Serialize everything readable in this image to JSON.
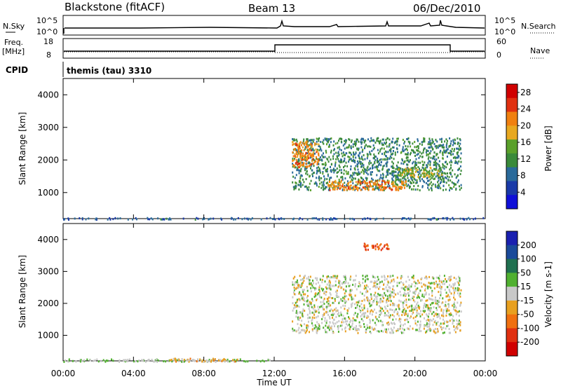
{
  "header": {
    "station": "Blackstone (fitACF)",
    "beam": "Beam 13",
    "date": "06/Dec/2010"
  },
  "mini_panels": {
    "nsky_label": "N.Sky",
    "nsky_ticks": [
      "10^5",
      "10^0"
    ],
    "nsearch_label": "N.Search",
    "nsearch_ticks": [
      "10^5",
      "10^0"
    ],
    "freq_label_1": "Freq.",
    "freq_label_2": "[MHz]",
    "freq_ticks": [
      "18",
      "8"
    ],
    "nave_label": "Nave",
    "nave_ticks": [
      "60",
      "0"
    ],
    "cpid_label": "CPID",
    "cpid_value": "themis (tau) 3310"
  },
  "colors": {
    "power": [
      "#1010d8",
      "#1a3aa8",
      "#2a6a9a",
      "#3a8a3a",
      "#5aa02a",
      "#e8a820",
      "#f08010",
      "#e03010",
      "#d00000"
    ],
    "velocity": [
      "#1a20b0",
      "#1a4a9a",
      "#207050",
      "#50b030",
      "#c8c8c8",
      "#e8a020",
      "#f07010",
      "#e03010",
      "#d00000"
    ]
  },
  "chart_data": [
    {
      "type": "heatmap",
      "name": "power",
      "xlabel": "Time UT",
      "ylabel": "Slant Range [km]",
      "xlim": [
        0,
        24
      ],
      "ylim": [
        200,
        4500
      ],
      "x_ticks": [
        "00:00",
        "04:00",
        "08:00",
        "12:00",
        "16:00",
        "20:00",
        "00:00"
      ],
      "y_ticks": [
        "1000",
        "2000",
        "3000",
        "4000"
      ],
      "colorbar": {
        "label": "Power [dB]",
        "ticks": [
          "4",
          "8",
          "12",
          "16",
          "20",
          "24",
          "28"
        ],
        "range": [
          0,
          30
        ]
      },
      "regions": [
        {
          "t_start": 0,
          "t_end": 24,
          "range_km": [
            200,
            250
          ],
          "value_db": 6
        },
        {
          "t_start": 13.0,
          "t_end": 22.6,
          "range_km": [
            1100,
            2700
          ],
          "value_db": 10
        },
        {
          "t_start": 13.0,
          "t_end": 14.5,
          "range_km": [
            1800,
            2600
          ],
          "value_db": 22
        },
        {
          "t_start": 15.0,
          "t_end": 19.5,
          "range_km": [
            1100,
            1400
          ],
          "value_db": 22
        },
        {
          "t_start": 19.0,
          "t_end": 21.5,
          "range_km": [
            1500,
            1800
          ],
          "value_db": 16
        }
      ]
    },
    {
      "type": "heatmap",
      "name": "velocity",
      "xlabel": "Time UT",
      "ylabel": "Slant Range [km]",
      "xlim": [
        0,
        24
      ],
      "ylim": [
        200,
        4500
      ],
      "x_ticks": [
        "00:00",
        "04:00",
        "08:00",
        "12:00",
        "16:00",
        "20:00",
        "00:00"
      ],
      "y_ticks": [
        "1000",
        "2000",
        "3000",
        "4000"
      ],
      "colorbar": {
        "label": "Velocity [m s-1]",
        "ticks": [
          "200",
          "100",
          "50",
          "15",
          "-15",
          "-50",
          "-100",
          "-200"
        ],
        "range": [
          -250,
          250
        ]
      },
      "regions": [
        {
          "t_start": 0,
          "t_end": 12,
          "range_km": [
            200,
            280
          ],
          "value_ms": 30
        },
        {
          "t_start": 6,
          "t_end": 10,
          "range_km": [
            200,
            300
          ],
          "value_ms": -50
        },
        {
          "t_start": 13.0,
          "t_end": 22.6,
          "range_km": [
            1100,
            2900
          ],
          "value_ms": 0
        },
        {
          "t_start": 17.0,
          "t_end": 18.5,
          "range_km": [
            3700,
            3900
          ],
          "value_ms": -150
        }
      ]
    }
  ]
}
